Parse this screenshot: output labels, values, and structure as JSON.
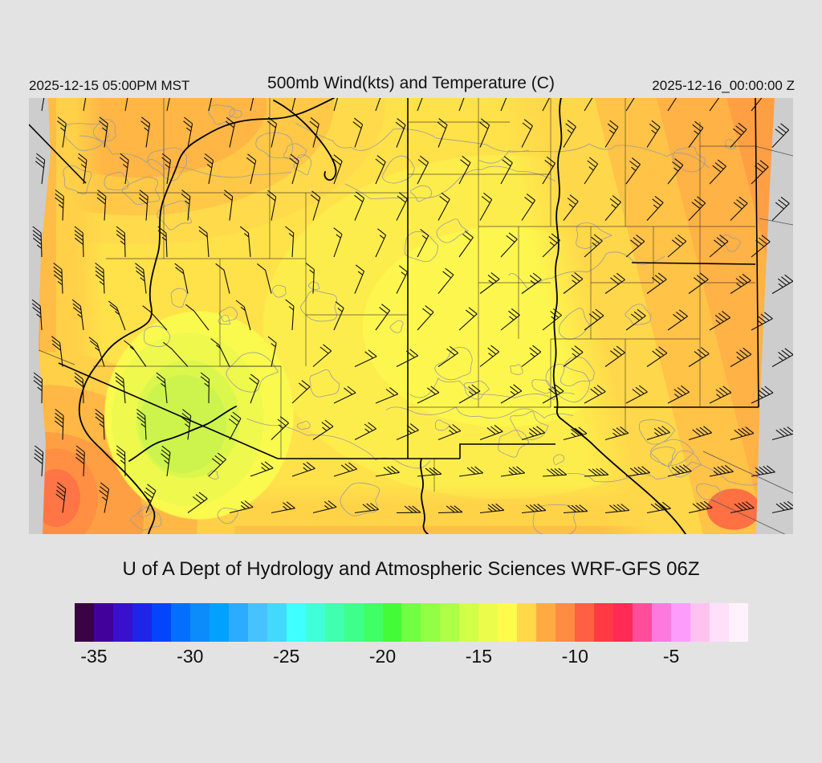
{
  "header": {
    "left_timestamp": "2025-12-15 05:00PM MST",
    "title": "500mb Wind(kts) and Temperature (C)",
    "right_timestamp": "2025-12-16_00:00:00 Z"
  },
  "footer": {
    "credit": "U of A Dept of Hydrology and Atmospheric Sciences WRF-GFS 06Z"
  },
  "colorbar": {
    "unit": "C",
    "colors": [
      "#3a0343",
      "#43019b",
      "#3911cc",
      "#1e25e8",
      "#0345fa",
      "#026ffe",
      "#0b8cfa",
      "#02a1fe",
      "#2bacff",
      "#45c2ff",
      "#42d9fd",
      "#40ffff",
      "#40ffd8",
      "#40ffb0",
      "#3fff8c",
      "#40ff66",
      "#44fb37",
      "#70ff42",
      "#92ff45",
      "#aeff48",
      "#d2ff48",
      "#ecfc4a",
      "#fffb4d",
      "#ffd948",
      "#ffab42",
      "#ff8c42",
      "#ff5f42",
      "#ff3a45",
      "#ff2a55",
      "#ff4d9b",
      "#fc7ade",
      "#fe9cfc",
      "#ffc2f0",
      "#ffdffa",
      "#fff2fd"
    ],
    "ticks": [
      {
        "label": "-35",
        "pct": 2.86
      },
      {
        "label": "-30",
        "pct": 17.14
      },
      {
        "label": "-25",
        "pct": 31.43
      },
      {
        "label": "-20",
        "pct": 45.71
      },
      {
        "label": "-15",
        "pct": 60.0
      },
      {
        "label": "-10",
        "pct": 74.29
      },
      {
        "label": "-5",
        "pct": 88.57
      }
    ]
  },
  "map": {
    "colors": {
      "margin": "#cdcdcd",
      "state": "#000000",
      "river": "#000000",
      "county": "#2b2b2b",
      "contour": "#9c9c9c",
      "barb": "#0d0d0d"
    },
    "margin_polygons": [
      "0,0 24,0 27,70 15,190 12,310 21,430 17,543 0,543",
      "952,0 929,0 923,110 916,260 910,400 906,543 952,543"
    ],
    "state_paths": [
      "M472,0 L472,449",
      "M905,0 L909,385",
      "M654,385 L909,385",
      "M37,330 L310,449",
      "M310,449 L537,449",
      "M537,449 L537,431 L656,431",
      "M751,205 L905,207",
      "M0,33 L71,106"
    ],
    "river_paths": [
      "M380,0 C352,14 330,26 300,26 C272,26 250,30 228,42 C206,54 192,62 186,80 C180,98 172,112 166,132 C160,154 166,176 160,196 C154,218 148,238 152,258 C156,276 148,282 132,290 C116,298 104,306 95,318 C86,331 76,342 70,356 C64,372 60,388 65,403 C70,418 79,427 90,437 C101,449 113,459 124,471 C137,485 149,499 155,513 C160,524 151,534 149,543",
      "M305,3 C330,16 352,38 368,60 C378,74 387,90 380,99 C375,106 366,100 369,92",
      "M663,0 C657,22 668,44 661,66 C655,88 665,110 659,132 C653,155 664,177 658,199 C652,222 662,244 656,266 C651,288 660,310 655,332 C650,356 661,372 658,388 C657,394 660,398 665,401 C678,412 692,421 702,431 C714,443 728,455 742,467 C757,480 772,492 784,504 C796,516 808,528 818,543",
      "M489,449 C485,462 494,475 490,489 C486,503 496,516 492,530 C490,536 494,541 497,543",
      "M258,384 C242,392 231,403 215,409 C199,415 186,422 170,426 C152,430 139,444 125,452"
    ],
    "county_paths": [
      "M168,0 L168,118",
      "M60,118 L300,118",
      "M300,0 L300,200",
      "M168,118 L168,200",
      "M96,200 L345,200",
      "M238,200 L238,334",
      "M345,118 L345,334",
      "M300,118 L472,118",
      "M345,270 L472,270",
      "M80,334 L314,334",
      "M314,334 L314,449",
      "M238,334 L314,334",
      "M472,30 L599,30",
      "M560,0 L560,95",
      "M472,95 L650,95",
      "M650,0 L650,95",
      "M743,0 L743,160",
      "M836,30 L836,160",
      "M836,60 L905,60",
      "M560,95 L560,300",
      "M650,95 L650,160",
      "M560,160 L905,160",
      "M610,160 L610,300",
      "M700,160 L700,300",
      "M778,160 L778,230",
      "M836,160 L836,300",
      "M560,230 L650,230",
      "M700,230 L778,230",
      "M836,230 L905,230",
      "M650,300 L836,300",
      "M650,300 L650,385",
      "M743,300 L743,418",
      "M836,300 L836,385",
      "M560,300 L560,385",
      "M560,385 L650,385",
      "M743,385 L836,385",
      "M472,385 L560,385",
      "M0,309 L57,332",
      "M505,449 L505,490"
    ],
    "margin_line_paths": [
      "M840,440 L952,492",
      "M850,500 L952,548",
      "M905,60 L952,72",
      "M910,150 L952,158"
    ],
    "contour_seed": 7,
    "contour_blobs": 54,
    "contour_squiggles": 9,
    "wind_points": [
      {
        "x": 0.02,
        "y": 0.4,
        "d": 358,
        "s": 48
      },
      {
        "x": 0.08,
        "y": 0.45,
        "d": 358,
        "s": 46
      },
      {
        "x": 0.04,
        "y": 0.85,
        "d": 3,
        "s": 44
      },
      {
        "x": 0.1,
        "y": 0.14,
        "d": 8,
        "s": 28
      },
      {
        "x": 0.32,
        "y": 0.07,
        "d": 12,
        "s": 24
      },
      {
        "x": 0.55,
        "y": 0.06,
        "d": 20,
        "s": 22
      },
      {
        "x": 0.78,
        "y": 0.08,
        "d": 32,
        "s": 26
      },
      {
        "x": 0.96,
        "y": 0.18,
        "d": 45,
        "s": 34
      },
      {
        "x": 0.97,
        "y": 0.52,
        "d": 62,
        "s": 40
      },
      {
        "x": 0.94,
        "y": 0.88,
        "d": 80,
        "s": 46
      },
      {
        "x": 0.7,
        "y": 0.9,
        "d": 88,
        "s": 44
      },
      {
        "x": 0.5,
        "y": 0.93,
        "d": 90,
        "s": 34
      },
      {
        "x": 0.3,
        "y": 0.93,
        "d": 80,
        "s": 28
      },
      {
        "x": 0.13,
        "y": 0.82,
        "d": 355,
        "s": 40
      },
      {
        "x": 0.2,
        "y": 0.57,
        "d": 310,
        "s": 8
      },
      {
        "x": 0.3,
        "y": 0.44,
        "d": 345,
        "s": 12
      },
      {
        "x": 0.46,
        "y": 0.4,
        "d": 25,
        "s": 16
      },
      {
        "x": 0.62,
        "y": 0.46,
        "d": 55,
        "s": 26
      },
      {
        "x": 0.44,
        "y": 0.66,
        "d": 70,
        "s": 20
      },
      {
        "x": 0.76,
        "y": 0.46,
        "d": 55,
        "s": 32
      },
      {
        "x": 0.55,
        "y": 0.24,
        "d": 28,
        "s": 20
      }
    ]
  }
}
